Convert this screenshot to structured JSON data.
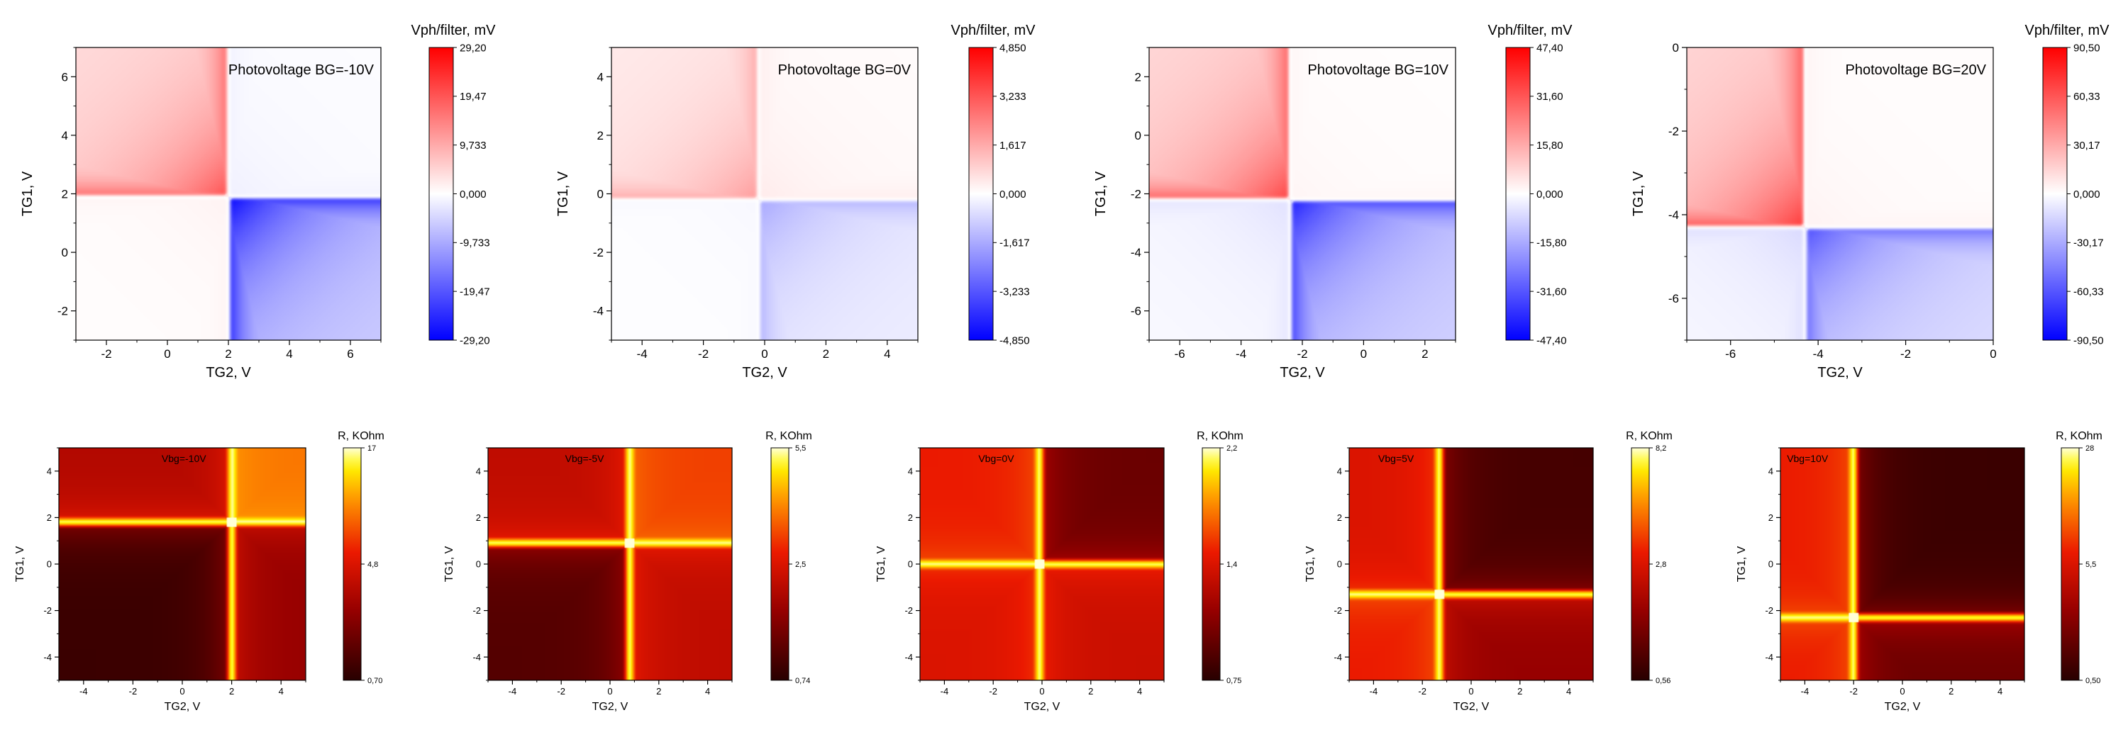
{
  "chart_data": [
    {
      "type": "heatmap",
      "row": "top",
      "title": "Photovoltage BG=-10V",
      "xlabel": "TG2, V",
      "ylabel": "TG1, V",
      "xlim": [
        -3,
        7
      ],
      "ylim": [
        -3,
        7
      ],
      "xticks": [
        -2,
        0,
        2,
        4,
        6
      ],
      "yticks": [
        -2,
        0,
        2,
        4,
        6
      ],
      "xtick_labels": [
        "-2",
        "0",
        "2",
        "4",
        "6"
      ],
      "ytick_labels": [
        "-2",
        "0",
        "2",
        "4",
        "6"
      ],
      "colorbar_label": "Vph/filter, mV",
      "colorbar_ticks": [
        "29,20",
        "19,47",
        "9,733",
        "0,000",
        "-9,733",
        "-19,47",
        "-29,20"
      ],
      "vmax": 29.2,
      "cross": {
        "x": 2.0,
        "y": 1.9
      },
      "features": {
        "ul": 0.7,
        "ur": -0.06,
        "ll": 0.05,
        "lr": -1.0
      }
    },
    {
      "type": "heatmap",
      "row": "top",
      "title": "Photovoltage BG=0V",
      "xlabel": "TG2, V",
      "ylabel": "TG1, V",
      "xlim": [
        -5,
        5
      ],
      "ylim": [
        -5,
        5
      ],
      "xticks": [
        -4,
        -2,
        0,
        2,
        4
      ],
      "yticks": [
        -4,
        -2,
        0,
        2,
        4
      ],
      "xtick_labels": [
        "-4",
        "-2",
        "0",
        "2",
        "4"
      ],
      "ytick_labels": [
        "-4",
        "-2",
        "0",
        "2",
        "4"
      ],
      "colorbar_label": "Vph/filter, mV",
      "colorbar_ticks": [
        "4,850",
        "3,233",
        "1,617",
        "0,000",
        "-1,617",
        "-3,233",
        "-4,850"
      ],
      "vmax": 4.85,
      "cross": {
        "x": -0.2,
        "y": -0.2
      },
      "features": {
        "ul": 0.4,
        "ur": 0.08,
        "ll": -0.03,
        "lr": -0.35
      }
    },
    {
      "type": "heatmap",
      "row": "top",
      "title": "Photovoltage BG=10V",
      "xlabel": "TG2, V",
      "ylabel": "TG1, V",
      "xlim": [
        -7,
        3
      ],
      "ylim": [
        -7,
        3
      ],
      "xticks": [
        -6,
        -4,
        -2,
        0,
        2
      ],
      "yticks": [
        -6,
        -4,
        -2,
        0,
        2
      ],
      "xtick_labels": [
        "-6",
        "-4",
        "-2",
        "0",
        "2"
      ],
      "ytick_labels": [
        "-6",
        "-4",
        "-2",
        "0",
        "2"
      ],
      "colorbar_label": "Vph/filter, mV",
      "colorbar_ticks": [
        "47,40",
        "31,60",
        "15,80",
        "0,000",
        "-15,80",
        "-31,60",
        "-47,40"
      ],
      "vmax": 47.4,
      "cross": {
        "x": -2.4,
        "y": -2.2
      },
      "features": {
        "ul": 0.75,
        "ur": 0.04,
        "ll": -0.12,
        "lr": -0.9
      }
    },
    {
      "type": "heatmap",
      "row": "top",
      "title": "Photovoltage BG=20V",
      "xlabel": "TG2, V",
      "ylabel": "TG1, V",
      "xlim": [
        -7,
        0
      ],
      "ylim": [
        -7,
        0
      ],
      "xticks": [
        -6,
        -4,
        -2,
        0
      ],
      "yticks": [
        -6,
        -4,
        -2,
        0
      ],
      "xtick_labels": [
        "-6",
        "-4",
        "-2",
        "0"
      ],
      "ytick_labels": [
        "-6",
        "-4",
        "-2",
        "0"
      ],
      "colorbar_label": "Vph/filter, mV",
      "colorbar_ticks": [
        "90,50",
        "60,33",
        "30,17",
        "0,000",
        "-30,17",
        "-60,33",
        "-90,50"
      ],
      "vmax": 90.5,
      "cross": {
        "x": -4.3,
        "y": -4.3
      },
      "features": {
        "ul": 0.8,
        "ur": 0.05,
        "ll": -0.15,
        "lr": -0.7
      }
    },
    {
      "type": "heatmap",
      "row": "bottom",
      "title": "Vbg=-10V",
      "xlabel": "TG2, V",
      "ylabel": "TG1, V",
      "xlim": [
        -5,
        5
      ],
      "ylim": [
        -5,
        5
      ],
      "xticks": [
        -4,
        -2,
        0,
        2,
        4
      ],
      "yticks": [
        -4,
        -2,
        0,
        2,
        4
      ],
      "xtick_labels": [
        "-4",
        "-2",
        "0",
        "2",
        "4"
      ],
      "ytick_labels": [
        "-4",
        "-2",
        "0",
        "2",
        "4"
      ],
      "colorbar_label": "R, KOhm",
      "colorbar_ticks": [
        "17",
        "4,8",
        "0,70"
      ],
      "cross": {
        "x": 2.0,
        "y": 1.8
      },
      "features": {
        "ul": 0.38,
        "ur": 0.72,
        "ll": 0.05,
        "lr": 0.3
      }
    },
    {
      "type": "heatmap",
      "row": "bottom",
      "title": "Vbg=-5V",
      "xlabel": "TG2, V",
      "ylabel": "TG1, V",
      "xlim": [
        -5,
        5
      ],
      "ylim": [
        -5,
        5
      ],
      "xticks": [
        -4,
        -2,
        0,
        2,
        4
      ],
      "yticks": [
        -4,
        -2,
        0,
        2,
        4
      ],
      "xtick_labels": [
        "-4",
        "-2",
        "0",
        "2",
        "4"
      ],
      "ytick_labels": [
        "-4",
        "-2",
        "0",
        "2",
        "4"
      ],
      "colorbar_label": "R, KOhm",
      "colorbar_ticks": [
        "5,5",
        "2,5",
        "0,74"
      ],
      "cross": {
        "x": 0.8,
        "y": 0.9
      },
      "features": {
        "ul": 0.42,
        "ur": 0.62,
        "ll": 0.12,
        "lr": 0.42
      }
    },
    {
      "type": "heatmap",
      "row": "bottom",
      "title": "Vbg=0V",
      "xlabel": "TG2, V",
      "ylabel": "TG1, V",
      "xlim": [
        -5,
        5
      ],
      "ylim": [
        -5,
        5
      ],
      "xticks": [
        -4,
        -2,
        0,
        2,
        4
      ],
      "yticks": [
        -4,
        -2,
        0,
        2,
        4
      ],
      "xtick_labels": [
        "-4",
        "-2",
        "0",
        "2",
        "4"
      ],
      "ytick_labels": [
        "-4",
        "-2",
        "0",
        "2",
        "4"
      ],
      "colorbar_label": "R, KOhm",
      "colorbar_ticks": [
        "2,2",
        "1,4",
        "0,75"
      ],
      "cross": {
        "x": -0.1,
        "y": 0.0
      },
      "features": {
        "ul": 0.55,
        "ur": 0.18,
        "ll": 0.5,
        "lr": 0.45
      }
    },
    {
      "type": "heatmap",
      "row": "bottom",
      "title": "Vbg=5V",
      "xlabel": "TG2, V",
      "ylabel": "TG1, V",
      "xlim": [
        -5,
        5
      ],
      "ylim": [
        -5,
        5
      ],
      "xticks": [
        -4,
        -2,
        0,
        2,
        4
      ],
      "yticks": [
        -4,
        -2,
        0,
        2,
        4
      ],
      "xtick_labels": [
        "-4",
        "-2",
        "0",
        "2",
        "4"
      ],
      "ytick_labels": [
        "-4",
        "-2",
        "0",
        "2",
        "4"
      ],
      "colorbar_label": "R, KOhm",
      "colorbar_ticks": [
        "8,2",
        "2,8",
        "0,56"
      ],
      "cross": {
        "x": -1.3,
        "y": -1.3
      },
      "features": {
        "ul": 0.5,
        "ur": 0.08,
        "ll": 0.55,
        "lr": 0.3
      }
    },
    {
      "type": "heatmap",
      "row": "bottom",
      "title": "Vbg=10V",
      "xlabel": "TG2, V",
      "ylabel": "TG1, V",
      "xlim": [
        -5,
        5
      ],
      "ylim": [
        -5,
        5
      ],
      "xticks": [
        -4,
        -2,
        0,
        2,
        4
      ],
      "yticks": [
        -4,
        -2,
        0,
        2,
        4
      ],
      "xtick_labels": [
        "-4",
        "-2",
        "0",
        "2",
        "4"
      ],
      "ytick_labels": [
        "-4",
        "-2",
        "0",
        "2",
        "4"
      ],
      "colorbar_label": "R, KOhm",
      "colorbar_ticks": [
        "28",
        "5,5",
        "0,50"
      ],
      "cross": {
        "x": -2.0,
        "y": -2.3
      },
      "features": {
        "ul": 0.55,
        "ur": 0.05,
        "ll": 0.55,
        "lr": 0.18
      }
    }
  ]
}
